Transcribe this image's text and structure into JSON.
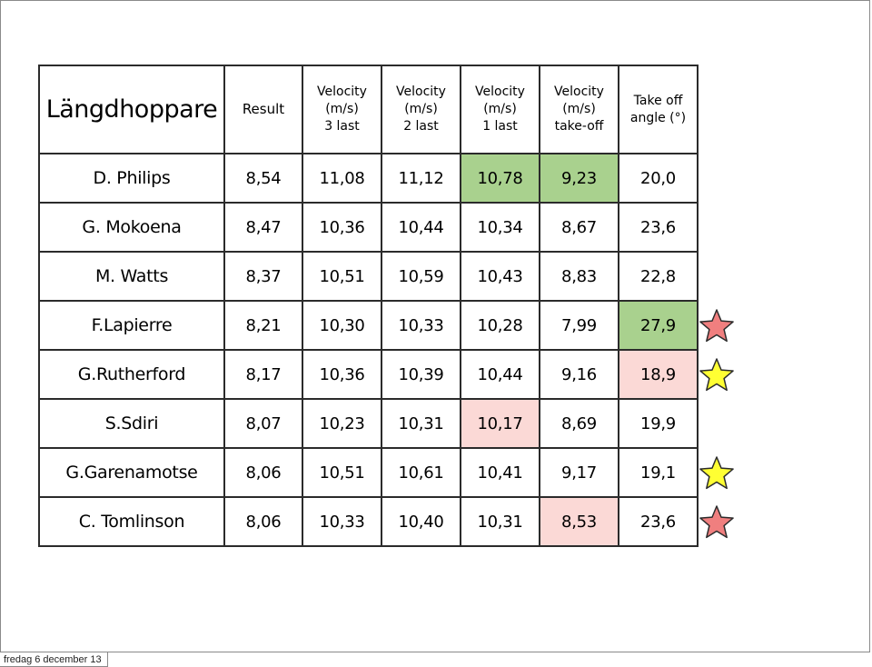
{
  "table": {
    "title": "Längdhoppare",
    "headers": {
      "result": [
        "Result"
      ],
      "v3": [
        "Velocity",
        "(m/s)",
        "3 last"
      ],
      "v2": [
        "Velocity",
        "(m/s)",
        "2 last"
      ],
      "v1": [
        "Velocity",
        "(m/s)",
        "1 last"
      ],
      "vt": [
        "Velocity",
        "(m/s)",
        "take-off"
      ],
      "angle": [
        "Take off",
        "angle (°)"
      ]
    },
    "rows": [
      {
        "name": "D. Philips",
        "values": [
          "8,54",
          "11,08",
          "11,12",
          "10,78",
          "9,23",
          "20,0"
        ],
        "highlight": [
          "",
          "",
          "",
          "green",
          "green",
          ""
        ]
      },
      {
        "name": "G. Mokoena",
        "values": [
          "8,47",
          "10,36",
          "10,44",
          "10,34",
          "8,67",
          "23,6"
        ],
        "highlight": [
          "",
          "",
          "",
          "",
          "",
          ""
        ]
      },
      {
        "name": "M. Watts",
        "values": [
          "8,37",
          "10,51",
          "10,59",
          "10,43",
          "8,83",
          "22,8"
        ],
        "highlight": [
          "",
          "",
          "",
          "",
          "",
          ""
        ]
      },
      {
        "name": "F.Lapierre",
        "values": [
          "8,21",
          "10,30",
          "10,33",
          "10,28",
          "7,99",
          "27,9"
        ],
        "highlight": [
          "",
          "",
          "",
          "",
          "",
          "green"
        ]
      },
      {
        "name": "G.Rutherford",
        "values": [
          "8,17",
          "10,36",
          "10,39",
          "10,44",
          "9,16",
          "18,9"
        ],
        "highlight": [
          "",
          "",
          "",
          "",
          "",
          "pink"
        ]
      },
      {
        "name": "S.Sdiri",
        "values": [
          "8,07",
          "10,23",
          "10,31",
          "10,17",
          "8,69",
          "19,9"
        ],
        "highlight": [
          "",
          "",
          "",
          "pink",
          "",
          ""
        ]
      },
      {
        "name": "G.Garenamotse",
        "values": [
          "8,06",
          "10,51",
          "10,61",
          "10,41",
          "9,17",
          "19,1"
        ],
        "highlight": [
          "",
          "",
          "",
          "",
          "",
          ""
        ]
      },
      {
        "name": "C. Tomlinson",
        "values": [
          "8,06",
          "10,33",
          "10,40",
          "10,31",
          "8,53",
          "23,6"
        ],
        "highlight": [
          "",
          "",
          "",
          "",
          "pink",
          ""
        ]
      }
    ]
  },
  "stars": [
    {
      "row": 3,
      "color": "#f07f7f",
      "icon": "star-icon"
    },
    {
      "row": 4,
      "color": "#ffff33",
      "icon": "star-icon"
    },
    {
      "row": 6,
      "color": "#ffff33",
      "icon": "star-icon"
    },
    {
      "row": 7,
      "color": "#f07f7f",
      "icon": "star-icon"
    }
  ],
  "colors": {
    "green": "#a9d18e",
    "pink": "#fbd9d6",
    "border": "#2b2b2b"
  },
  "footer": {
    "date_label": "fredag 6 december 13"
  }
}
